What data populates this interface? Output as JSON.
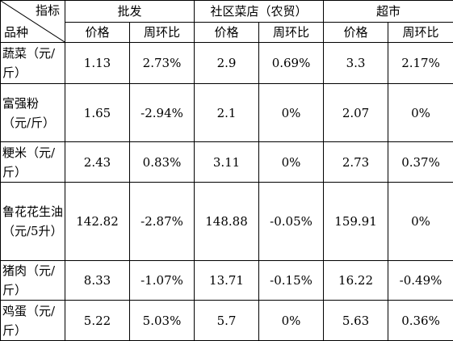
{
  "table": {
    "corner": {
      "top": "指标",
      "bottom": "品种"
    },
    "groups": [
      "批发",
      "社区菜店（农贸）",
      "超市"
    ],
    "subheaders": [
      "价格",
      "周环比",
      "价格",
      "周环比",
      "价格",
      "周环比"
    ],
    "rows": [
      [
        "蔬菜（元/斤）",
        "1.13",
        "2.73%",
        "2.9",
        "0.69%",
        "3.3",
        "2.17%"
      ],
      [
        "富强粉（元/斤）",
        "1.65",
        "-2.94%",
        "2.1",
        "0%",
        "2.07",
        "0%"
      ],
      [
        "粳米（元/斤）",
        "2.43",
        "0.83%",
        "3.11",
        "0%",
        "2.73",
        "0.37%"
      ],
      [
        "鲁花花生油（元/5升）",
        "142.82",
        "-2.87%",
        "148.88",
        "-0.05%",
        "159.91",
        "0%"
      ],
      [
        "猪肉（元/斤）",
        "8.33",
        "-1.07%",
        "13.71",
        "-0.15%",
        "16.22",
        "-0.49%"
      ],
      [
        "鸡蛋（元/斤）",
        "5.22",
        "5.03%",
        "5.7",
        "0%",
        "5.63",
        "0.36%"
      ]
    ]
  }
}
